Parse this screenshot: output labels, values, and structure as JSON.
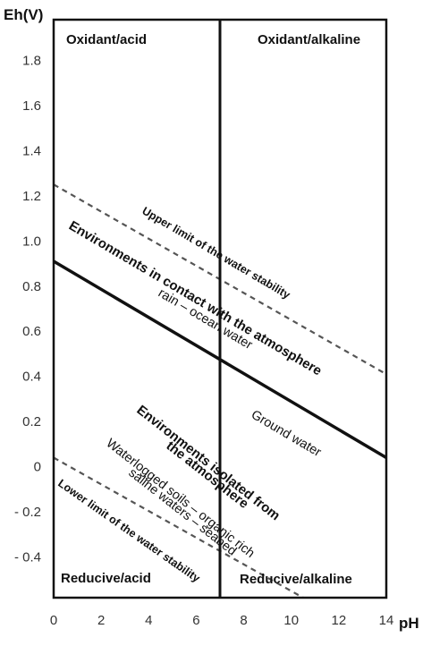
{
  "chart_data": {
    "type": "line",
    "ylabel": "Eh(V)",
    "xlabel": "pH",
    "xlim": [
      0,
      14
    ],
    "ylim": [
      -0.58,
      1.98
    ],
    "x_ticks": [
      0,
      2,
      4,
      6,
      8,
      10,
      12,
      14
    ],
    "x_tick_labels": [
      "0",
      "2",
      "4",
      "6",
      "8",
      "10",
      "12",
      "14"
    ],
    "y_ticks": [
      1.8,
      1.6,
      1.4,
      1.2,
      1.0,
      0.8,
      0.6,
      0.4,
      0.2,
      0,
      -0.2,
      -0.4
    ],
    "y_tick_labels": [
      "1.8",
      "1.6",
      "1.4",
      "1.2",
      "1.0",
      "0.8",
      "0.6",
      "0.4",
      "0.2",
      "0",
      "- 0.2",
      "- 0.4"
    ],
    "grid": false,
    "vertical_line_ph": 7,
    "series": [
      {
        "style": "dashed",
        "x": [
          0,
          14
        ],
        "y": [
          1.25,
          0.41
        ]
      },
      {
        "style": "solid",
        "x": [
          0,
          14
        ],
        "y": [
          0.91,
          0.04
        ]
      },
      {
        "style": "dashed",
        "x": [
          0,
          10.5
        ],
        "y": [
          0.04,
          -0.58
        ]
      }
    ],
    "regions": {
      "top_left": "Oxidant/acid",
      "top_right": "Oxidant/alkaline",
      "bottom_left": "Reducive/acid",
      "bottom_right": "Reducive/alkaline"
    },
    "annotations": {
      "upper_limit": "Upper limit  of the water stability",
      "contact_atmosphere": "Environments in contact with the atmosphere",
      "rain_ocean": "rain – ocean water",
      "ground_water": "Ground water",
      "isolated_line1": "Environments isolated from",
      "isolated_line2": "the atmosphere",
      "waterlogged": "Waterlogged soils – organic rich",
      "saline": "saline waters – seabed",
      "lower_limit": "Lower limit of the water stability"
    }
  }
}
